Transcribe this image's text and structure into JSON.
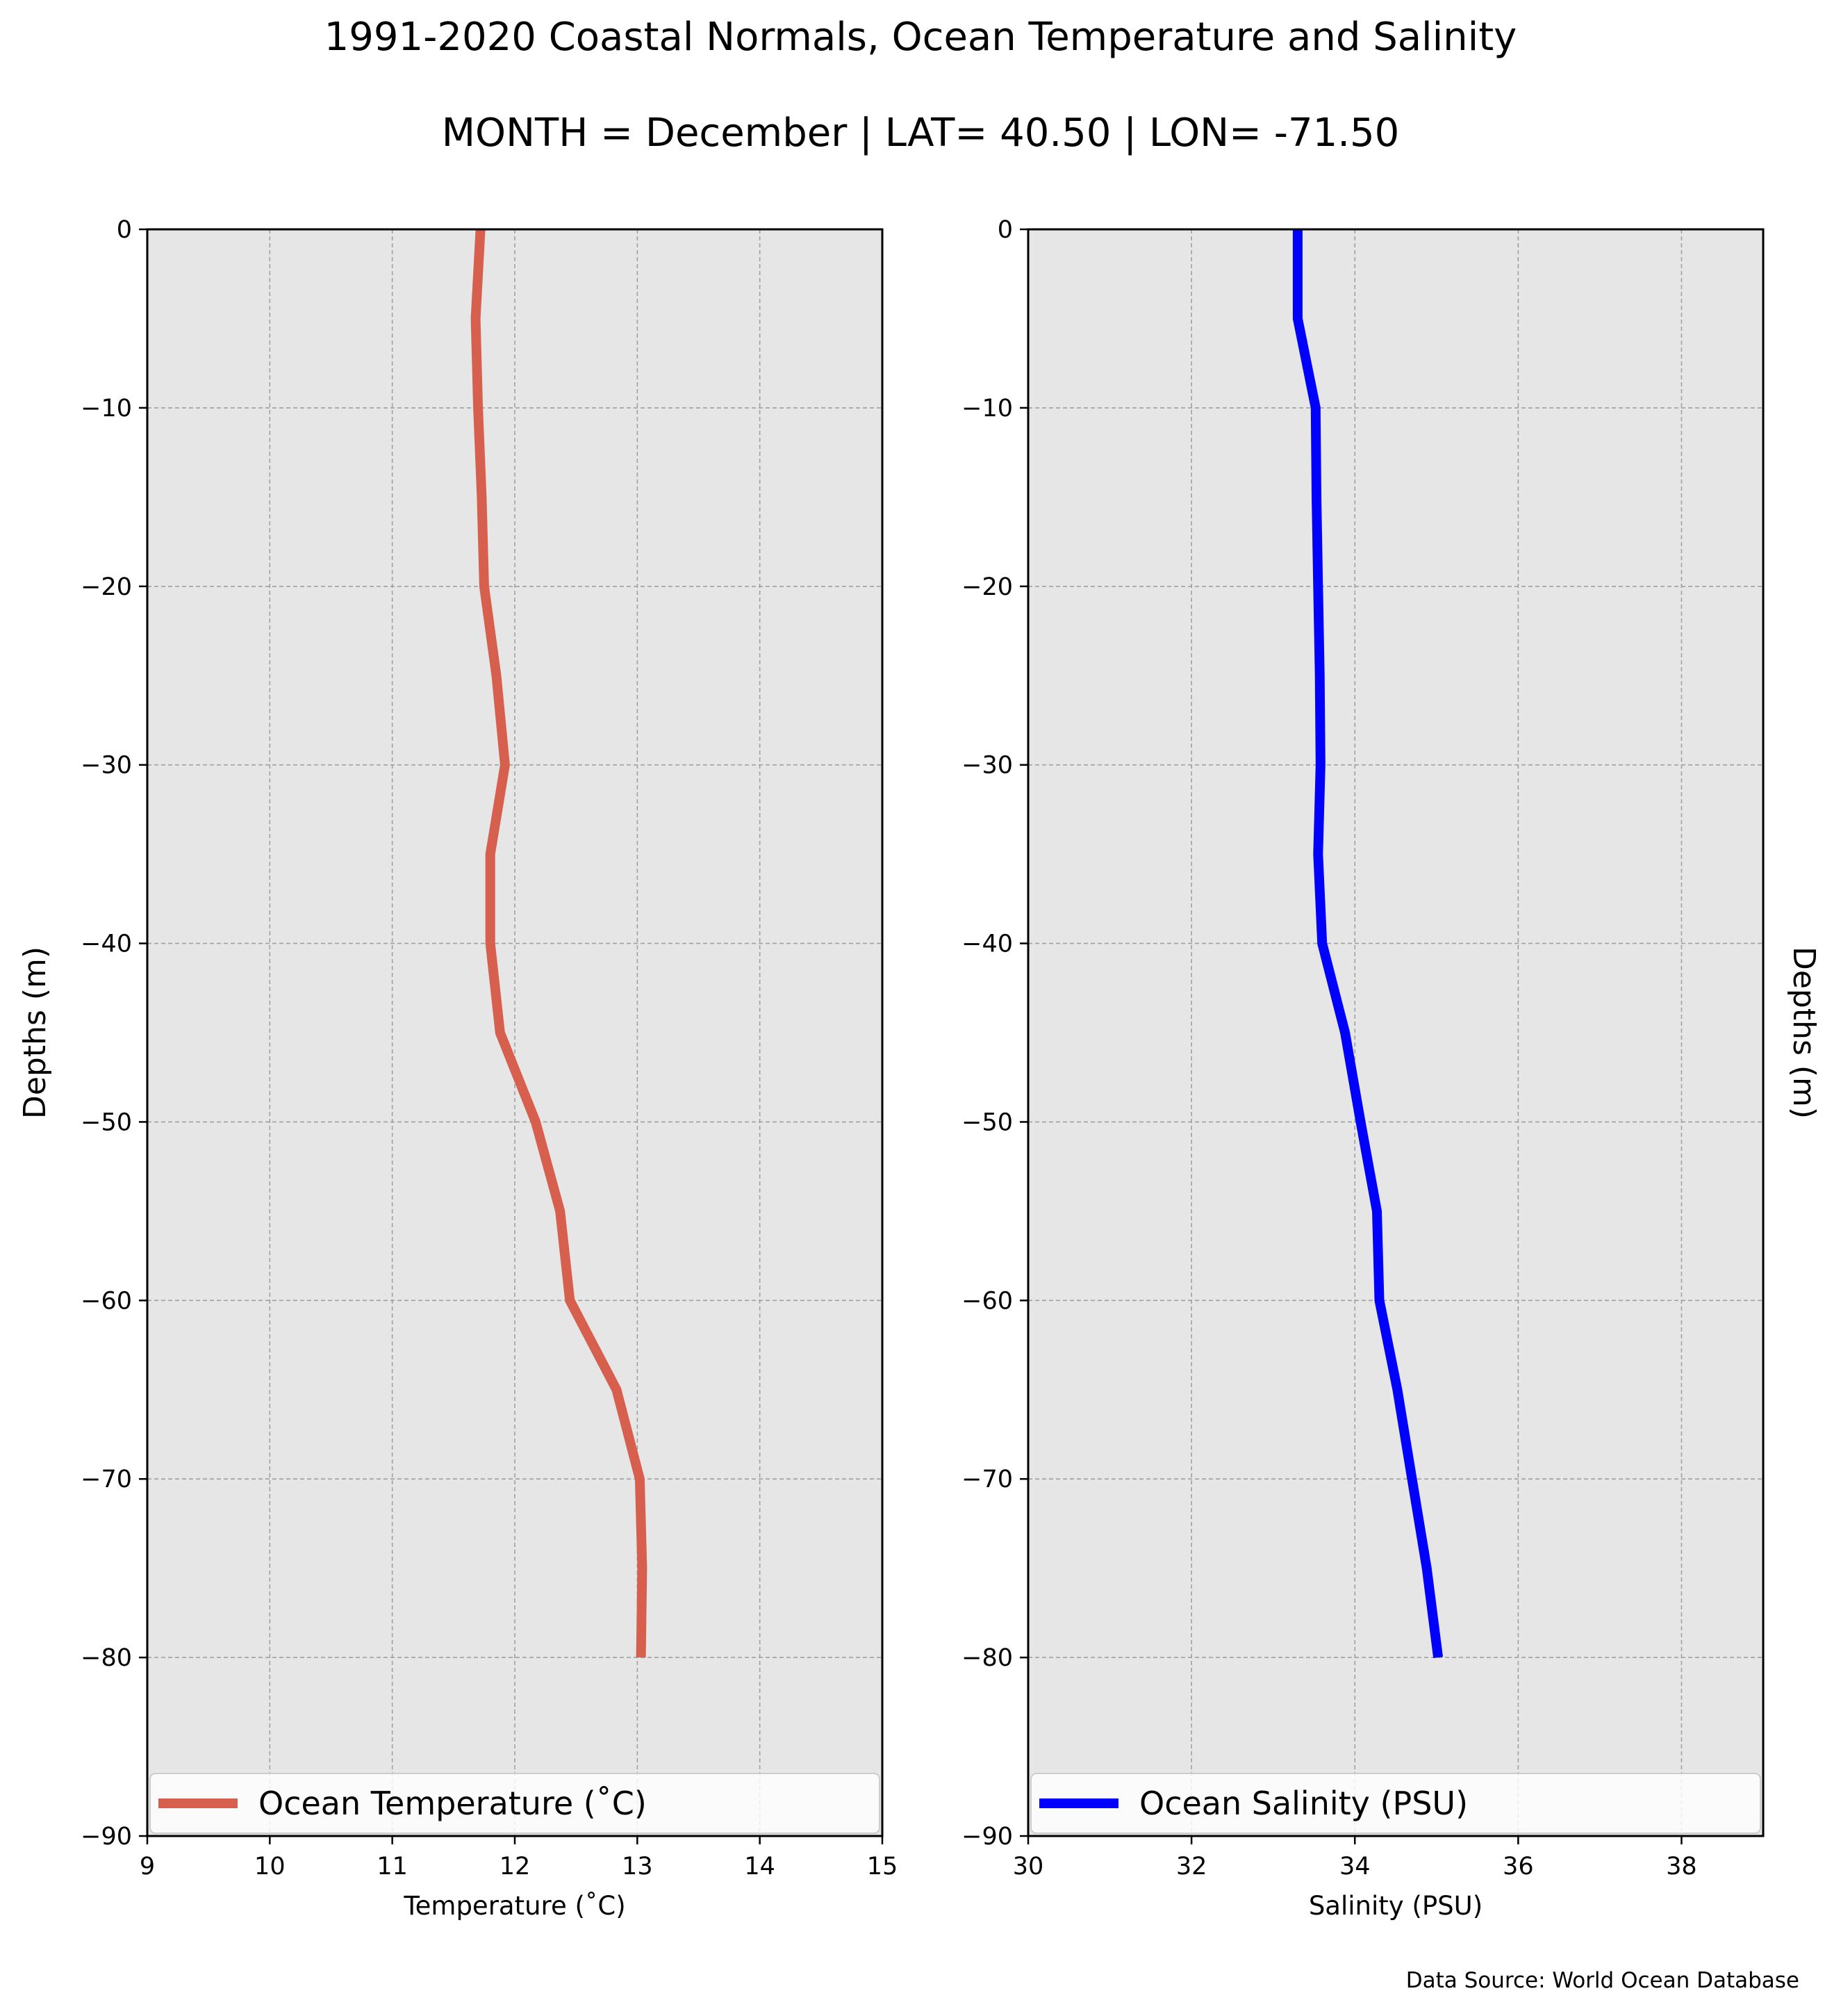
{
  "figure": {
    "title": "1991-2020 Coastal Normals, Ocean Temperature and Salinity",
    "subtitle": "MONTH = December | LAT= 40.50 | LON= -71.50",
    "source": "Data Source: World Ocean Database"
  },
  "chart_data": [
    {
      "type": "line",
      "xlabel": "Temperature ($^\\circ$C)",
      "xlabel_display": "Temperature (˚C)",
      "ylabel": "Depths (m)",
      "xlim": [
        9,
        15
      ],
      "ylim": [
        -90,
        0
      ],
      "xticks": [
        "9",
        "10",
        "11",
        "12",
        "13",
        "14",
        "15"
      ],
      "yticks": [
        "0",
        "−10",
        "−20",
        "−30",
        "−40",
        "−50",
        "−60",
        "−70",
        "−80",
        "−90"
      ],
      "grid": true,
      "legend_position": "bottom",
      "series": [
        {
          "name": "Ocean Temperature (˚C)",
          "color": "#d6604d",
          "x": [
            11.72,
            11.68,
            11.7,
            11.73,
            11.75,
            11.85,
            11.92,
            11.8,
            11.8,
            11.88,
            12.17,
            12.37,
            12.45,
            12.83,
            13.02,
            13.04,
            13.03
          ],
          "y": [
            0,
            -5,
            -10,
            -15,
            -20,
            -25,
            -30,
            -35,
            -40,
            -45,
            -50,
            -55,
            -60,
            -65,
            -70,
            -75,
            -80
          ]
        }
      ]
    },
    {
      "type": "line",
      "xlabel": "Salinity (PSU)",
      "ylabel": "Depths (m)",
      "xlim": [
        30,
        39
      ],
      "ylim": [
        -90,
        0
      ],
      "xticks": [
        "30",
        "32",
        "34",
        "36",
        "38"
      ],
      "yticks": [
        "0",
        "−10",
        "−20",
        "−30",
        "−40",
        "−50",
        "−60",
        "−70",
        "−80",
        "−90"
      ],
      "grid": true,
      "legend_position": "bottom",
      "series": [
        {
          "name": "Ocean Salinity (PSU)",
          "color": "#0000ff",
          "x": [
            33.3,
            33.3,
            33.52,
            33.53,
            33.55,
            33.57,
            33.58,
            33.55,
            33.6,
            33.88,
            34.07,
            34.27,
            34.3,
            34.52,
            34.7,
            34.88,
            35.02
          ],
          "y": [
            0,
            -5,
            -10,
            -15,
            -20,
            -25,
            -30,
            -35,
            -40,
            -45,
            -50,
            -55,
            -60,
            -65,
            -70,
            -75,
            -80
          ]
        }
      ]
    }
  ]
}
